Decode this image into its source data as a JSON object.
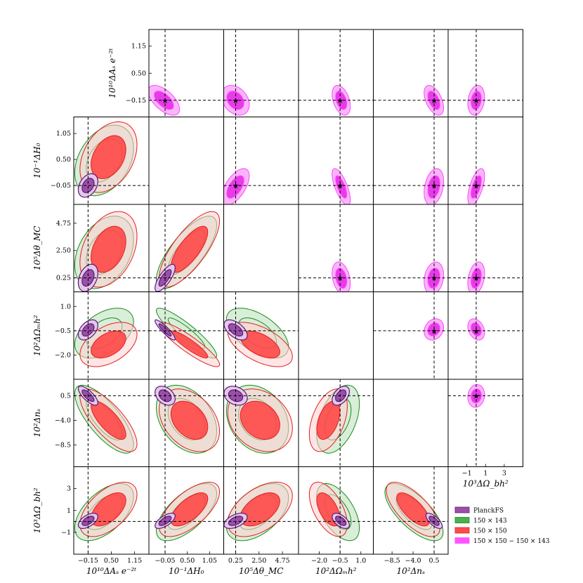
{
  "chart_data": {
    "type": "triangle-contour-corner-plot",
    "parameters": [
      {
        "key": "As",
        "label": "10¹⁰ΔAₛ e⁻²ᵗ",
        "ticks": [
          -0.15,
          0.5,
          1.15
        ],
        "range": [
          -0.55,
          1.55
        ]
      },
      {
        "key": "H0",
        "label": "10⁻¹ΔH₀",
        "ticks": [
          -0.05,
          0.5,
          1.05
        ],
        "range": [
          -0.45,
          1.4
        ]
      },
      {
        "key": "thetaMC",
        "label": "10⁵Δθ_MC",
        "ticks": [
          0.25,
          2.5,
          4.75
        ],
        "range": [
          -0.9,
          6.3
        ]
      },
      {
        "key": "Omh2",
        "label": "10²ΔΩₘh²",
        "ticks": [
          -2.0,
          -0.5,
          1.0
        ],
        "range": [
          -3.5,
          1.9
        ]
      },
      {
        "key": "ns",
        "label": "10²Δnₛ",
        "ticks": [
          -8.5,
          -4.0,
          0.5
        ],
        "range": [
          -12.5,
          3.5
        ]
      },
      {
        "key": "Obh2",
        "label": "10³ΔΩ_bh²",
        "ticks": [
          -1,
          1,
          3
        ],
        "range": [
          -3.0,
          5.0
        ]
      }
    ],
    "side_axis_label": "10³ΔΩ_bh²",
    "side_axis_ticks": [
      "−1",
      "1",
      "3"
    ],
    "tick_labels": {
      "As": [
        "−0.15",
        "0.50",
        "1.15"
      ],
      "H0": [
        "−0.05",
        "0.50",
        "1.05"
      ],
      "thetaMC": [
        "0.25",
        "2.50",
        "4.75"
      ],
      "Omh2": [
        "−2.0",
        "−0.5",
        "1.0"
      ],
      "ns": [
        "−8.5",
        "−4.0",
        "0.5"
      ],
      "Obh2": [
        "−1",
        "1",
        "3"
      ]
    },
    "fiducial": {
      "As": -0.15,
      "H0": -0.05,
      "thetaMC": 0.25,
      "Omh2": -0.5,
      "ns": 0.5,
      "Obh2": 0.0
    },
    "series": [
      {
        "name": "PlanckFS",
        "legend": "PlanckFS",
        "color": "#8e44ad",
        "fill_inner": "#9b4fa8",
        "fill_outer": "#e3c8ea",
        "edge": "#5b1a74",
        "center": {
          "As": -0.15,
          "H0": -0.05,
          "thetaMC": 0.25,
          "Omh2": -0.45,
          "ns": 0.5,
          "Obh2": 0.05
        },
        "sigma": {
          "As": 0.11,
          "H0": 0.1,
          "thetaMC": 0.45,
          "Omh2": 0.25,
          "ns": 0.7,
          "Obh2": 0.28
        }
      },
      {
        "name": "150x143",
        "legend": "150 × 143",
        "color": "#2ca02c",
        "fill_inner": "#2ca02c",
        "fill_outer": "#2ca02c",
        "edge": "#1a8a1a",
        "center": {
          "As": 0.3,
          "H0": 0.48,
          "thetaMC": 2.35,
          "Omh2": -0.65,
          "ns": -3.8,
          "Obh2": 0.85
        },
        "sigma": {
          "As": 0.33,
          "H0": 0.3,
          "thetaMC": 1.2,
          "Omh2": 0.62,
          "ns": 2.5,
          "Obh2": 1.05
        }
      },
      {
        "name": "150x150",
        "legend": "150 × 150",
        "color": "#ff3b3b",
        "fill_inner": "#ff4040",
        "fill_outer": "#ffd0d0",
        "edge": "#e02020",
        "center": {
          "As": 0.42,
          "H0": 0.55,
          "thetaMC": 2.6,
          "Omh2": -1.35,
          "ns": -4.0,
          "Obh2": 1.1
        },
        "sigma": {
          "As": 0.32,
          "H0": 0.3,
          "thetaMC": 1.25,
          "Omh2": 0.55,
          "ns": 2.3,
          "Obh2": 1.0
        }
      },
      {
        "name": "150x150-150x143",
        "legend": "150 × 150 − 150 × 143",
        "color": "#ff44ff",
        "fill_inner": "#e83ae8",
        "fill_outer": "#fbb4fb",
        "edge": "#ff44ff",
        "center": {
          "As": -0.15,
          "H0": -0.08,
          "thetaMC": 0.22,
          "Omh2": -0.42,
          "ns": 0.45,
          "Obh2": 0.0
        },
        "sigma": {
          "As": 0.12,
          "H0": 0.13,
          "thetaMC": 0.45,
          "Omh2": 0.22,
          "ns": 0.7,
          "Obh2": 0.3
        }
      }
    ],
    "lower_triangle_series": [
      "150x143",
      "150x150",
      "PlanckFS"
    ],
    "upper_triangle_series": [
      "150x150-150x143"
    ],
    "correlations": {
      "As-H0": 0.35,
      "As-thetaMC": 0.35,
      "As-Omh2": 0.45,
      "As-ns": -0.75,
      "As-Obh2": 0.55,
      "H0-thetaMC": 0.75,
      "H0-Omh2": -0.9,
      "H0-ns": -0.35,
      "H0-Obh2": 0.65,
      "thetaMC-Omh2": -0.55,
      "thetaMC-ns": -0.25,
      "thetaMC-Obh2": 0.5,
      "Omh2-ns": 0.45,
      "Omh2-Obh2": -0.55,
      "ns-Obh2": -0.7
    },
    "upper_correlations": {
      "As-H0": -0.6,
      "As-thetaMC": -0.3,
      "As-Omh2": -0.4,
      "As-ns": -0.5,
      "As-Obh2": 0.2,
      "H0-thetaMC": 0.6,
      "H0-Omh2": -0.7,
      "H0-ns": 0.3,
      "H0-Obh2": 0.6,
      "thetaMC-Omh2": -0.3,
      "thetaMC-ns": 0.2,
      "thetaMC-Obh2": 0.3,
      "Omh2-ns": 0.2,
      "Omh2-Obh2": -0.3,
      "ns-Obh2": 0.1
    },
    "legend_position": "bottom-right",
    "grid": false
  }
}
